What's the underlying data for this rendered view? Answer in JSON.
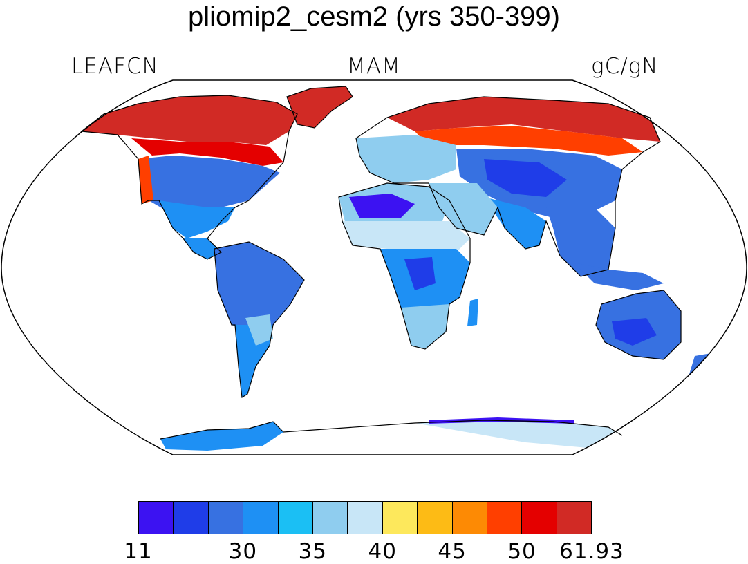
{
  "title": "pliomip2_cesm2 (yrs 350-399)",
  "variable_label": "LEAFCN",
  "season_label": "MAM",
  "units_label": "gC/gN",
  "projection": "Robinson",
  "colorbar": {
    "colors": [
      "#3c12f2",
      "#1f3de8",
      "#3771e1",
      "#1e90f4",
      "#1bbff4",
      "#8fcdef",
      "#c8e6f7",
      "#fde85c",
      "#fdbb15",
      "#fd8a04",
      "#ff3f00",
      "#e40000",
      "#d12a25"
    ],
    "tick_labels": [
      "11",
      "30",
      "35",
      "40",
      "45",
      "50",
      "61.93"
    ],
    "tick_box_boundaries": [
      0,
      3,
      5,
      7,
      9,
      11,
      13
    ]
  }
}
